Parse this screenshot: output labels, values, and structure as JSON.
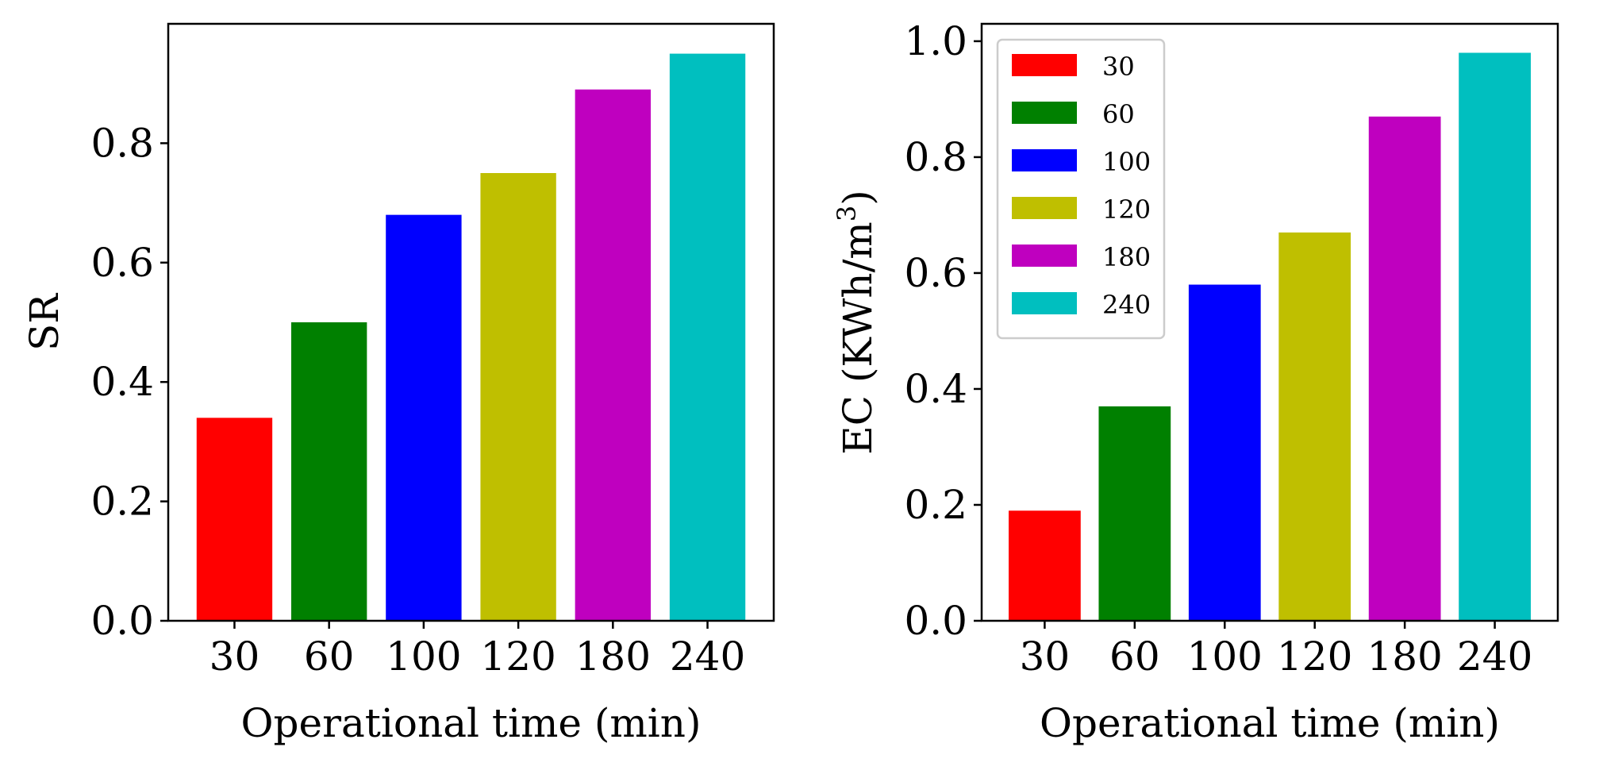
{
  "chart_data": [
    {
      "type": "bar",
      "categories": [
        "30",
        "60",
        "100",
        "120",
        "180",
        "240"
      ],
      "values": [
        0.34,
        0.5,
        0.68,
        0.75,
        0.89,
        0.95
      ],
      "colors": [
        "#ff0000",
        "#008000",
        "#0000ff",
        "#bfbf00",
        "#bf00bf",
        "#00bfbf"
      ],
      "title": "",
      "xlabel": "Operational time (min)",
      "ylabel": "SR",
      "ylim": [
        0,
        1.0
      ],
      "yticks": [
        "0.0",
        "0.2",
        "0.4",
        "0.6",
        "0.8"
      ],
      "grid": false,
      "legend": null
    },
    {
      "type": "bar",
      "categories": [
        "30",
        "60",
        "100",
        "120",
        "180",
        "240"
      ],
      "values": [
        0.19,
        0.37,
        0.58,
        0.67,
        0.87,
        0.98
      ],
      "colors": [
        "#ff0000",
        "#008000",
        "#0000ff",
        "#bfbf00",
        "#bf00bf",
        "#00bfbf"
      ],
      "title": "",
      "xlabel": "Operational time (min)",
      "ylabel_main": "EC (KWh/m",
      "ylabel_sup": "3",
      "ylabel_end": ")",
      "ylim": [
        0,
        1.03
      ],
      "yticks": [
        "0.0",
        "0.2",
        "0.4",
        "0.6",
        "0.8",
        "1.0"
      ],
      "grid": false,
      "legend": {
        "placement": "top-left",
        "entries": [
          "30",
          "60",
          "100",
          "120",
          "180",
          "240"
        ]
      }
    }
  ]
}
